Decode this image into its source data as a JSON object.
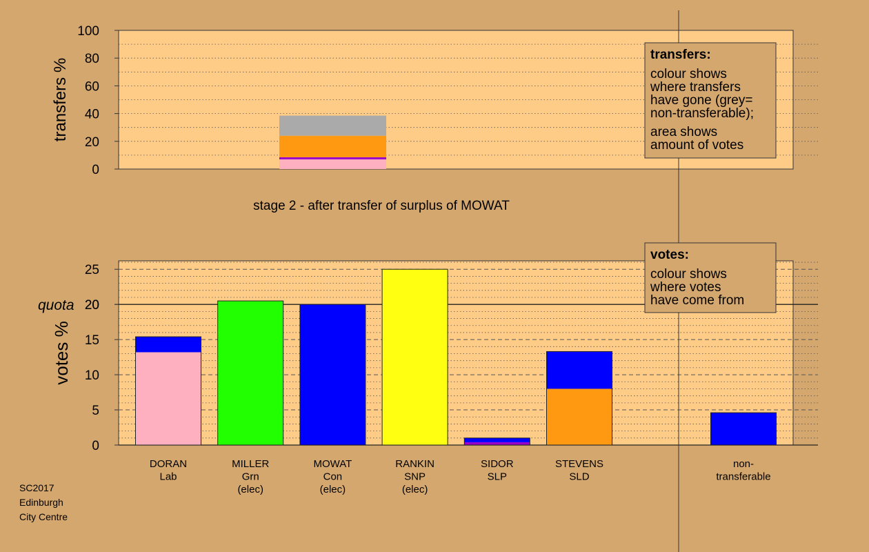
{
  "colors": {
    "background": "#d4a76f",
    "plot_bg": "#ffcc88",
    "lab": "#ffb0c0",
    "grn": "#22ff00",
    "con": "#0000ff",
    "snp": "#ffff11",
    "slp": "#9900cc",
    "sld": "#ff9911",
    "nontransferable": "#aaaaaa"
  },
  "stage_label": "stage 2 - after transfer of surplus of MOWAT",
  "footer": [
    "SC2017",
    "Edinburgh",
    "City Centre"
  ],
  "transfers_box": {
    "title": "transfers:",
    "lines": [
      "colour shows",
      "where transfers",
      "have gone (grey=",
      "non-transferable);",
      "area shows",
      "amount of votes"
    ]
  },
  "votes_box": {
    "title": "votes:",
    "lines": [
      "colour shows",
      "where votes",
      "have come from"
    ]
  },
  "chart_data": [
    {
      "type": "bar",
      "ylabel": "transfers %",
      "ylim": [
        0,
        100
      ],
      "yticks": [
        "0",
        "20",
        "40",
        "60",
        "80",
        "100"
      ],
      "bar_segments": [
        {
          "party": "lab",
          "value": 7.0
        },
        {
          "party": "slp",
          "value": 1.5
        },
        {
          "party": "sld",
          "value": 15.5
        },
        {
          "party": "nontransferable",
          "value": 14.5
        }
      ]
    },
    {
      "type": "bar",
      "ylabel": "votes %",
      "ylim": [
        0,
        26.2
      ],
      "yticks": [
        "0",
        "5",
        "10",
        "15",
        "20",
        "25"
      ],
      "quota_label": "quota",
      "quota": 20,
      "categories": [
        {
          "label": [
            "DORAN",
            "Lab"
          ],
          "segments": [
            {
              "party": "lab",
              "value": 13.2
            },
            {
              "party": "con",
              "value": 2.2
            }
          ]
        },
        {
          "label": [
            "MILLER",
            "Grn",
            "(elec)"
          ],
          "segments": [
            {
              "party": "grn",
              "value": 20.5
            }
          ]
        },
        {
          "label": [
            "MOWAT",
            "Con",
            "(elec)"
          ],
          "segments": [
            {
              "party": "con",
              "value": 20.0
            }
          ]
        },
        {
          "label": [
            "RANKIN",
            "SNP",
            "(elec)"
          ],
          "segments": [
            {
              "party": "snp",
              "value": 25.0
            }
          ]
        },
        {
          "label": [
            "SIDOR",
            "SLP"
          ],
          "segments": [
            {
              "party": "slp",
              "value": 0.4
            },
            {
              "party": "con",
              "value": 0.6
            }
          ]
        },
        {
          "label": [
            "STEVENS",
            "SLD"
          ],
          "segments": [
            {
              "party": "sld",
              "value": 8.0
            },
            {
              "party": "con",
              "value": 5.3
            }
          ]
        },
        {
          "label": [
            "non-",
            "transferable"
          ],
          "segments": [
            {
              "party": "con",
              "value": 4.6
            }
          ]
        }
      ]
    }
  ]
}
